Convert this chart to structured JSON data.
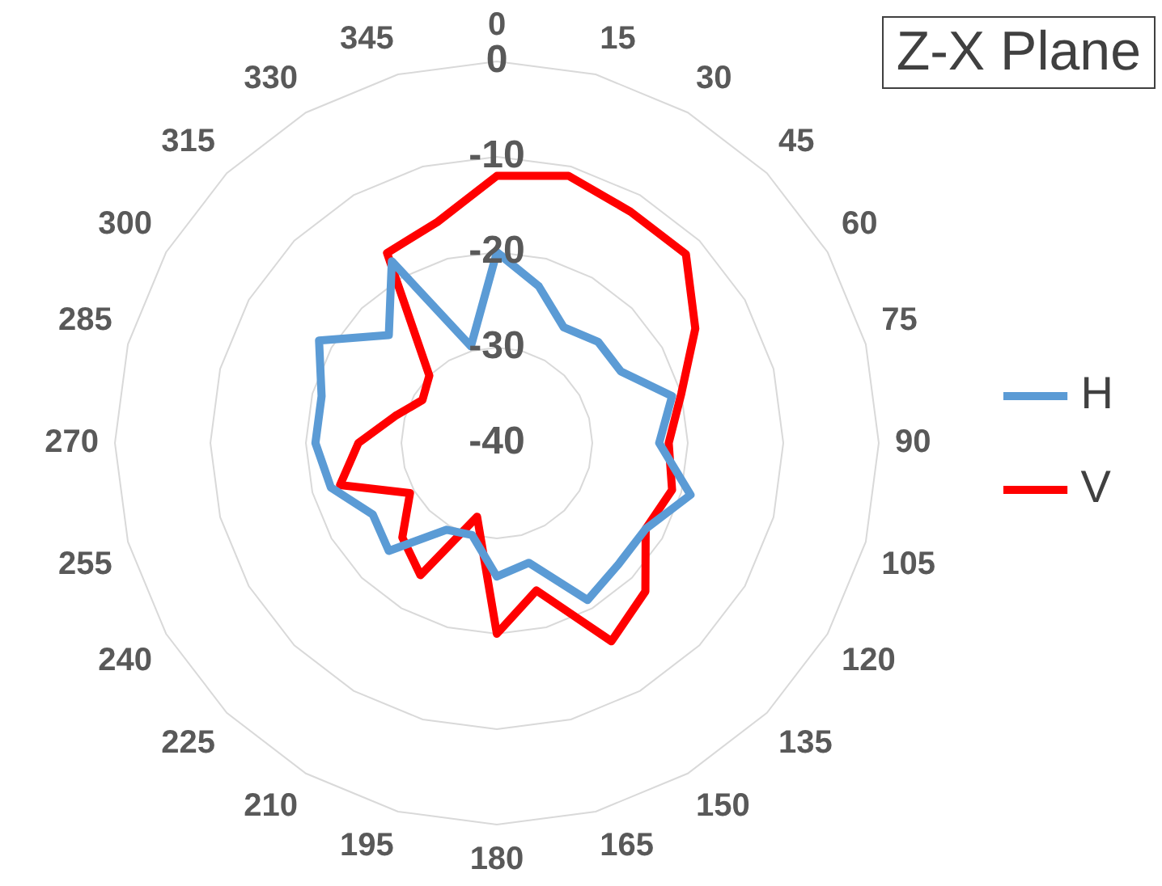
{
  "chart_data": {
    "type": "radar",
    "title": "Z-X Plane",
    "categories": [
      "0",
      "15",
      "30",
      "45",
      "60",
      "75",
      "90",
      "105",
      "120",
      "135",
      "150",
      "165",
      "180",
      "195",
      "210",
      "225",
      "240",
      "255",
      "270",
      "285",
      "300",
      "315",
      "330",
      "345"
    ],
    "ylim": [
      -40,
      0
    ],
    "yticks": [
      -40,
      -30,
      -20,
      -10,
      0
    ],
    "grid": true,
    "legend": "right",
    "marker": "none",
    "line_style": "solid",
    "series": [
      {
        "name": "H",
        "color": "#5b9bd5",
        "values": [
          -20,
          -23,
          -26,
          -25,
          -25,
          -21,
          -23,
          -19,
          -22,
          -22,
          -21,
          -27,
          -26,
          -30,
          -29.5,
          -24,
          -25,
          -22,
          -21,
          -21,
          -18.5,
          -24,
          -18,
          -29.5
        ]
      },
      {
        "name": "V",
        "color": "#ff0000",
        "values": [
          -12,
          -11,
          -12,
          -12,
          -16,
          -20,
          -22,
          -21,
          -22,
          -18,
          -16,
          -24,
          -20,
          -32,
          -24,
          -26,
          -29.5,
          -23,
          -25.5,
          -29,
          -31,
          -30,
          -17,
          -16
        ]
      }
    ]
  }
}
